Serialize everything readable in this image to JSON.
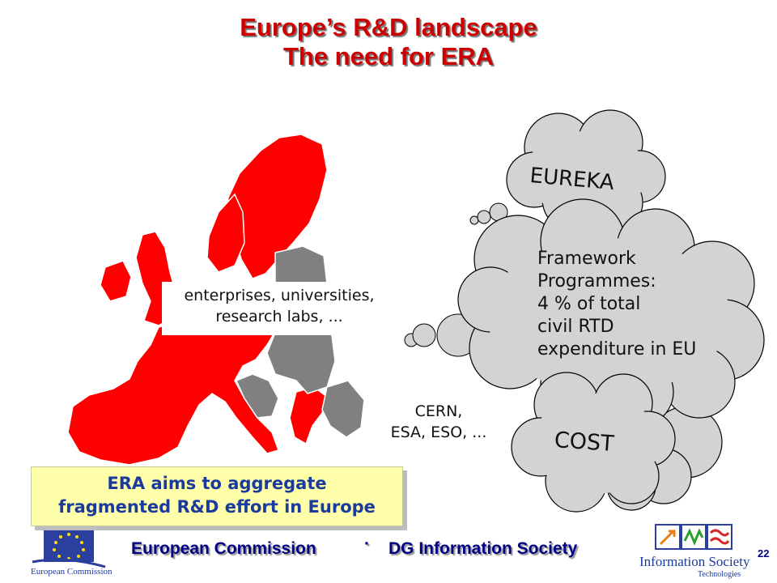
{
  "title": {
    "line1": "Europe’s R&D landscape",
    "line2": "The need for ERA"
  },
  "map": {
    "caption_line1": "enterprises, universities,",
    "caption_line2": "research labs, ..."
  },
  "clouds": {
    "eureka": "EUREKA",
    "framework_lines": [
      "Framework",
      "Programmes:",
      "4 % of total",
      "civil RTD",
      "expenditure in EU"
    ],
    "cost": "COST"
  },
  "other_orgs": {
    "line1": "CERN,",
    "line2": "ESA, ESO, ..."
  },
  "era_box": {
    "line1": "ERA aims to aggregate",
    "line2": "fragmented R&D effort in Europe"
  },
  "footer": {
    "left": "European Commission",
    "separator": "·",
    "right": "DG Information Society",
    "slide_number": "22",
    "ec_logo_caption": "European Commission",
    "ist_logo_line1": "Information Society",
    "ist_logo_line2": "Technologies"
  },
  "colors": {
    "title": "#cc0000",
    "eu_member": "#ff0000",
    "non_member": "#808080",
    "cloud": "#d3d3d3",
    "era_box_bg": "#ffffaa",
    "era_text": "#1a3a9e",
    "footer_text": "#000080"
  }
}
